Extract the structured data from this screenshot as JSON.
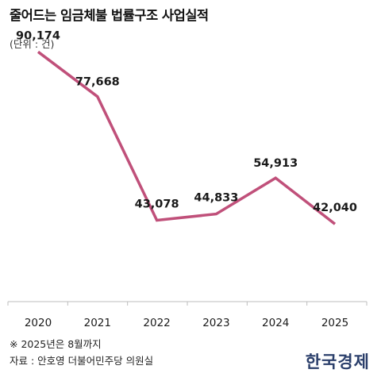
{
  "header": {
    "title": "줄어드는 임금체불 법률구조 사업실적",
    "unit": "(단위 : 건)"
  },
  "footer": {
    "footnote": "※ 2025년은 8월까지",
    "source": "자료 : 안호영 더불어민주당 의원실",
    "logo": "한국경제"
  },
  "colors": {
    "line": "#c0507a",
    "axis": "#bdbdbd",
    "text": "#1a1a1a"
  },
  "chart_data": {
    "type": "line",
    "title": "줄어드는 임금체불 법률구조 사업실적",
    "ylabel": "",
    "xlabel": "",
    "categories": [
      "2020",
      "2021",
      "2022",
      "2023",
      "2024",
      "2025"
    ],
    "values": [
      90174,
      77668,
      43078,
      44833,
      54913,
      42040
    ],
    "data_labels": [
      "90,174",
      "77,668",
      "43,078",
      "44,833",
      "54,913",
      "42,040"
    ],
    "ylim": [
      0,
      95000
    ],
    "grid": false
  }
}
